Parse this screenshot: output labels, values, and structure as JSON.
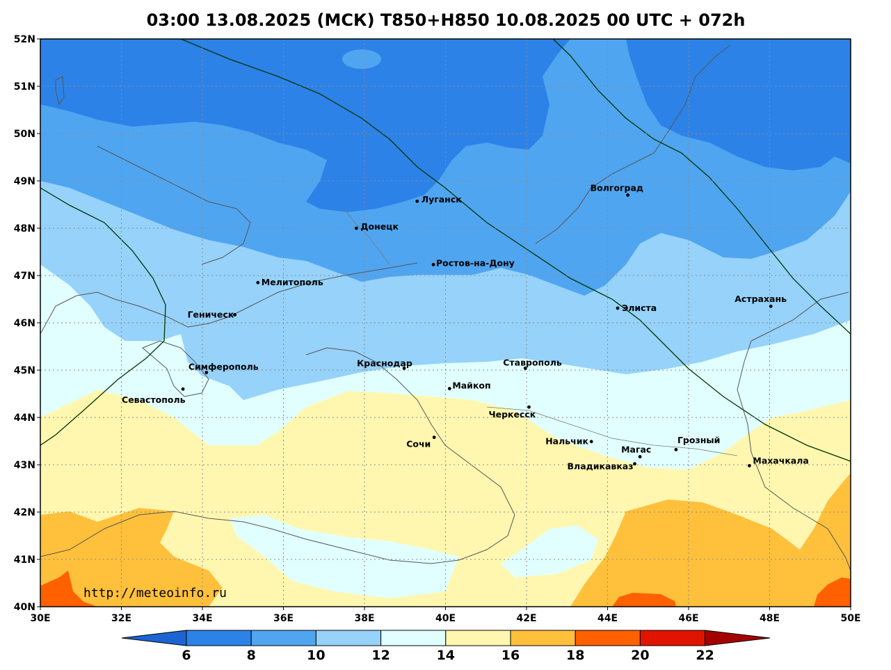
{
  "title": "03:00 13.08.2025 (МСК) T850+H850 10.08.2025 00 UTC + 072h",
  "watermark": "http://meteoinfo.ru",
  "axes": {
    "lon_min": 30,
    "lon_max": 50,
    "lat_min": 40,
    "lat_max": 52,
    "lon_ticks": [
      "30E",
      "32E",
      "34E",
      "36E",
      "38E",
      "40E",
      "42E",
      "44E",
      "46E",
      "48E",
      "50E"
    ],
    "lat_ticks": [
      "40N",
      "41N",
      "42N",
      "43N",
      "44N",
      "45N",
      "46N",
      "47N",
      "48N",
      "49N",
      "50N",
      "51N",
      "52N"
    ]
  },
  "colorbar": {
    "colors": [
      "#1c64d2",
      "#2d82e8",
      "#50a5f0",
      "#96d2fa",
      "#e1ffff",
      "#fff7b0",
      "#ffc03c",
      "#ff6000",
      "#e11400",
      "#a50000"
    ],
    "labels": [
      "6",
      "8",
      "10",
      "12",
      "14",
      "16",
      "18",
      "20",
      "22"
    ]
  },
  "cities": [
    {
      "name": "Луганск",
      "lon": 39.3,
      "lat": 48.57
    },
    {
      "name": "Донецк",
      "lon": 37.8,
      "lat": 48.0
    },
    {
      "name": "Волгоград",
      "lon": 44.5,
      "lat": 48.7
    },
    {
      "name": "Ростов-на-Дону",
      "lon": 39.7,
      "lat": 47.23
    },
    {
      "name": "Мелитополь",
      "lon": 35.37,
      "lat": 46.85
    },
    {
      "name": "Геническ",
      "lon": 34.8,
      "lat": 46.17
    },
    {
      "name": "Элиста",
      "lon": 44.25,
      "lat": 46.31
    },
    {
      "name": "Астрахань",
      "lon": 48.03,
      "lat": 46.35
    },
    {
      "name": "Краснодар",
      "lon": 38.98,
      "lat": 45.04
    },
    {
      "name": "Ставрополь",
      "lon": 41.97,
      "lat": 45.04
    },
    {
      "name": "Симферополь",
      "lon": 34.1,
      "lat": 44.95
    },
    {
      "name": "Майкоп",
      "lon": 40.1,
      "lat": 44.61
    },
    {
      "name": "Севастополь",
      "lon": 33.52,
      "lat": 44.6
    },
    {
      "name": "Черкесск",
      "lon": 42.06,
      "lat": 44.22
    },
    {
      "name": "Сочи",
      "lon": 39.72,
      "lat": 43.58
    },
    {
      "name": "Нальчик",
      "lon": 43.6,
      "lat": 43.49
    },
    {
      "name": "Грозный",
      "lon": 45.69,
      "lat": 43.32
    },
    {
      "name": "Магас",
      "lon": 44.8,
      "lat": 43.17
    },
    {
      "name": "Владикавказ",
      "lon": 44.67,
      "lat": 43.02
    },
    {
      "name": "Махачкала",
      "lon": 47.5,
      "lat": 42.98
    }
  ]
}
